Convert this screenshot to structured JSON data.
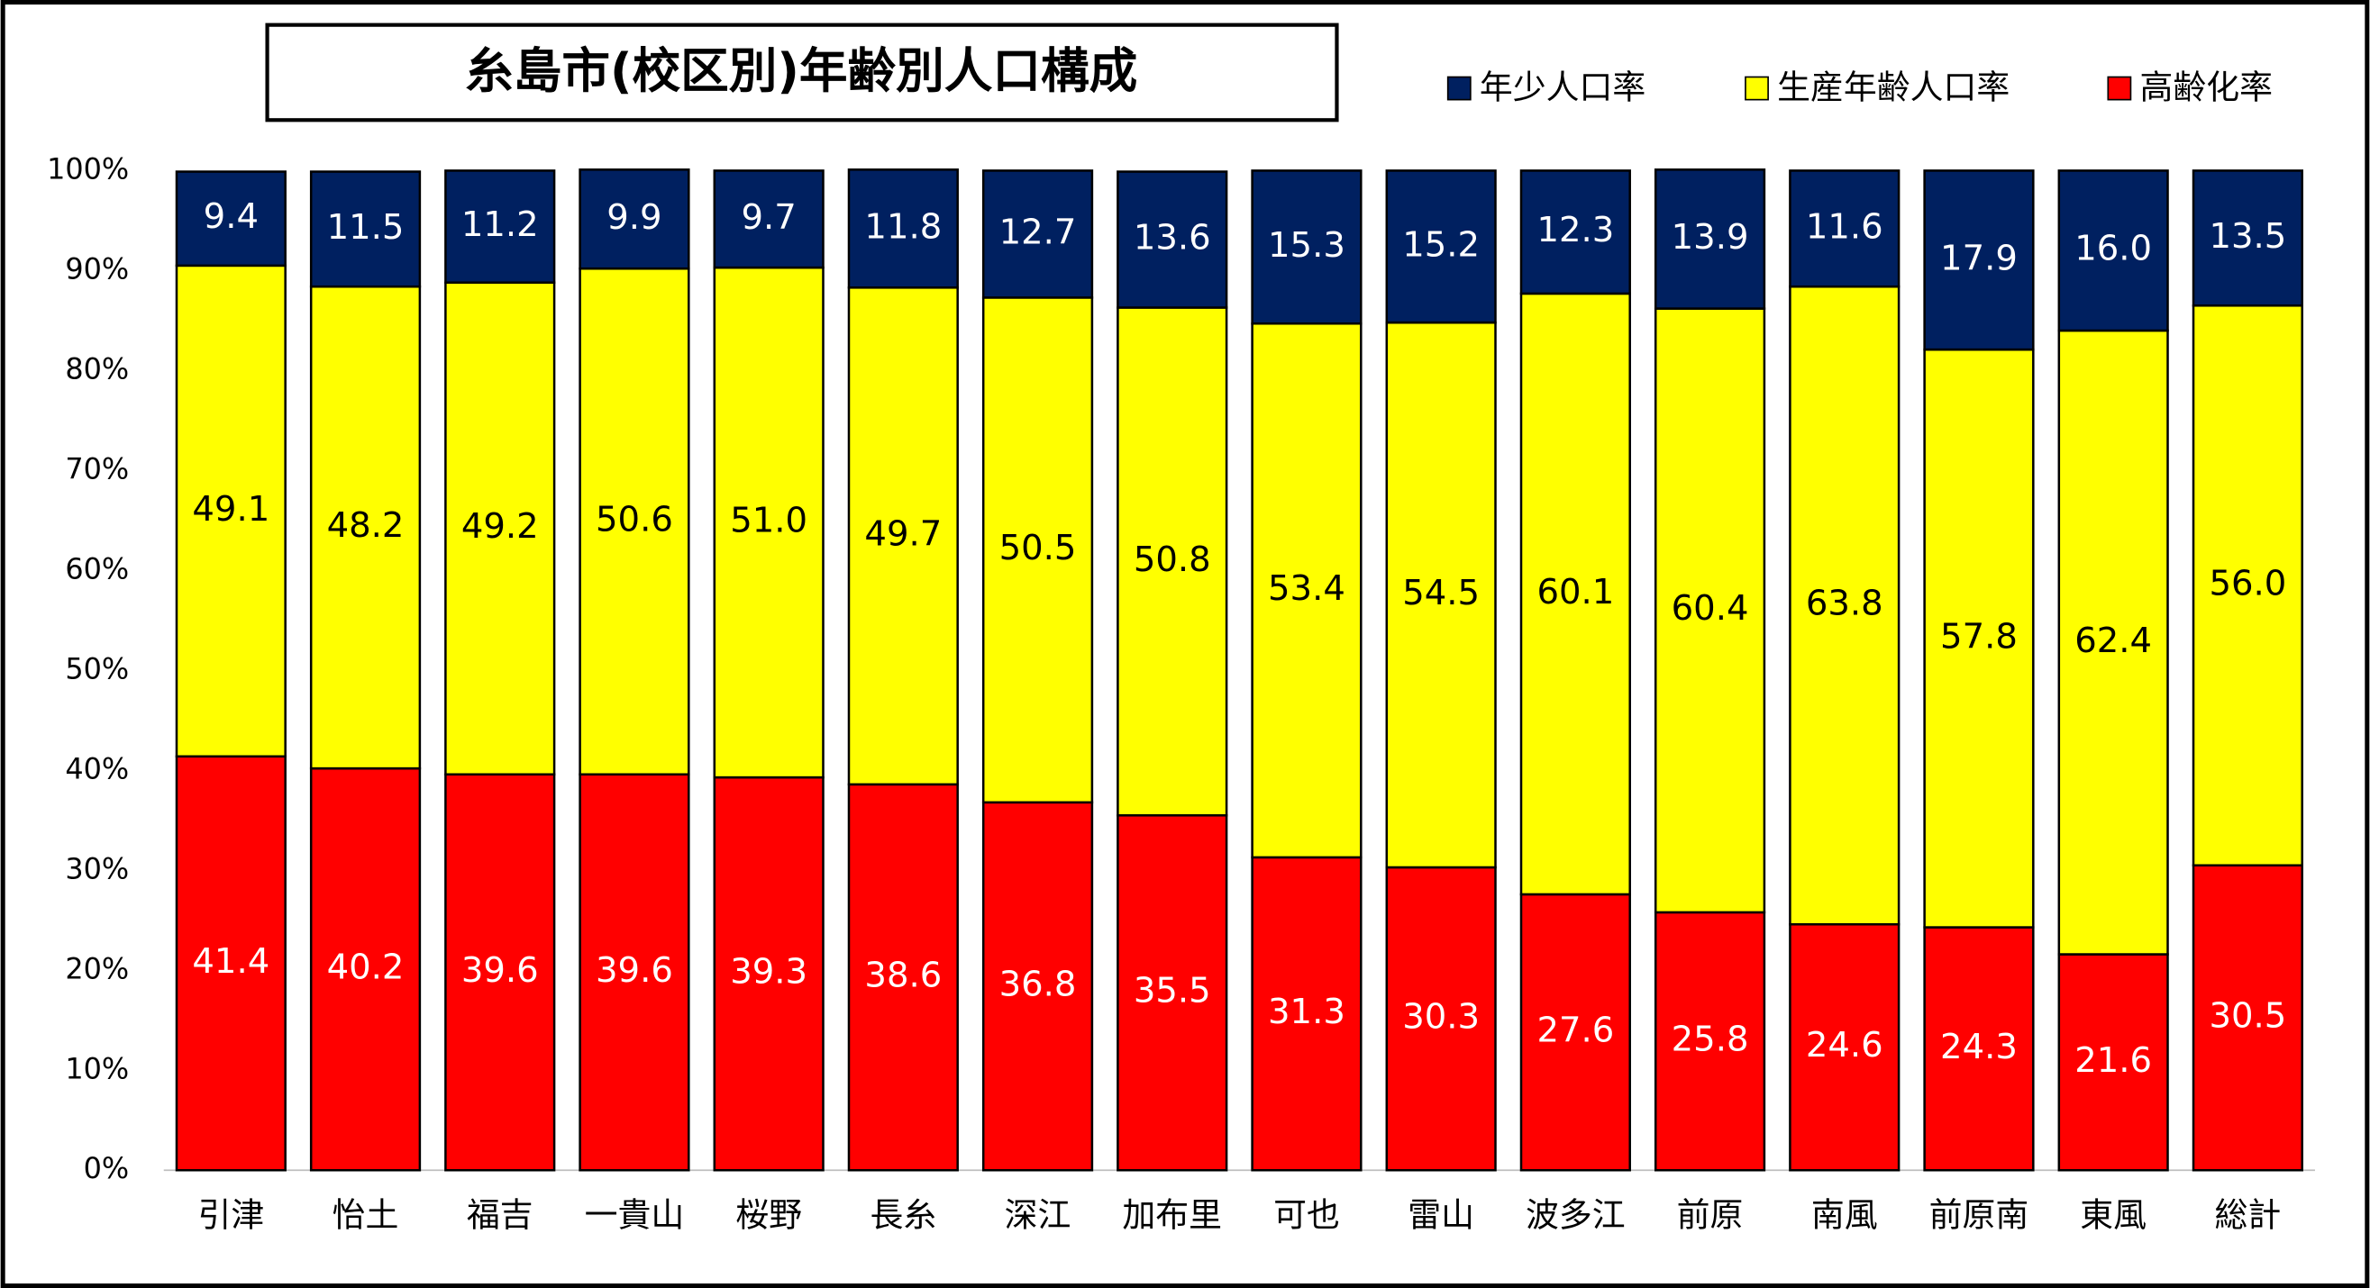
{
  "chart_data": {
    "type": "stacked_bar",
    "title": "糸島市(校区別)年齢別人口構成",
    "categories": [
      "引津",
      "怡土",
      "福吉",
      "一貴山",
      "桜野",
      "長糸",
      "深江",
      "加布里",
      "可也",
      "雷山",
      "波多江",
      "前原",
      "南風",
      "前原南",
      "東風",
      "総計"
    ],
    "series": [
      {
        "name": "年少人口率",
        "color": "#002060",
        "values": [
          9.4,
          11.5,
          11.2,
          9.9,
          9.7,
          11.8,
          12.7,
          13.6,
          15.3,
          15.2,
          12.3,
          13.9,
          11.6,
          17.9,
          16.0,
          13.5
        ],
        "value_labels": [
          "9.4",
          "11.5",
          "11.2",
          "9.9",
          "9.7",
          "11.8",
          "12.7",
          "13.6",
          "15.3",
          "15.2",
          "12.3",
          "13.9",
          "11.6",
          "17.9",
          "16.0",
          "13.5"
        ],
        "label_color": "#ffffff"
      },
      {
        "name": "生産年齢人口率",
        "color": "#ffff00",
        "values": [
          49.1,
          48.2,
          49.2,
          50.6,
          51.0,
          49.7,
          50.5,
          50.8,
          53.4,
          54.5,
          60.1,
          60.4,
          63.8,
          57.8,
          62.4,
          56.0
        ],
        "value_labels": [
          "49.1",
          "48.2",
          "49.2",
          "50.6",
          "51.0",
          "49.7",
          "50.5",
          "50.8",
          "53.4",
          "54.5",
          "60.1",
          "60.4",
          "63.8",
          "57.8",
          "62.4",
          "56.0"
        ],
        "label_color": "#000000"
      },
      {
        "name": "高齢化率",
        "color": "#ff0000",
        "values": [
          41.4,
          40.2,
          39.6,
          39.6,
          39.3,
          38.6,
          36.8,
          35.5,
          31.3,
          30.3,
          27.6,
          25.8,
          24.6,
          24.3,
          21.6,
          30.5
        ],
        "value_labels": [
          "41.4",
          "40.2",
          "39.6",
          "39.6",
          "39.3",
          "38.6",
          "36.8",
          "35.5",
          "31.3",
          "30.3",
          "27.6",
          "25.8",
          "24.6",
          "24.3",
          "21.6",
          "30.5"
        ],
        "label_color": "#ffffff"
      }
    ],
    "ylim": [
      0,
      100
    ],
    "yticks": [
      {
        "value": 0,
        "label": "0%"
      },
      {
        "value": 10,
        "label": "10%"
      },
      {
        "value": 20,
        "label": "20%"
      },
      {
        "value": 30,
        "label": "30%"
      },
      {
        "value": 40,
        "label": "40%"
      },
      {
        "value": 50,
        "label": "50%"
      },
      {
        "value": 60,
        "label": "60%"
      },
      {
        "value": 70,
        "label": "70%"
      },
      {
        "value": 80,
        "label": "80%"
      },
      {
        "value": 90,
        "label": "90%"
      },
      {
        "value": 100,
        "label": "100%"
      }
    ],
    "grid": false,
    "legend": "top-right"
  }
}
